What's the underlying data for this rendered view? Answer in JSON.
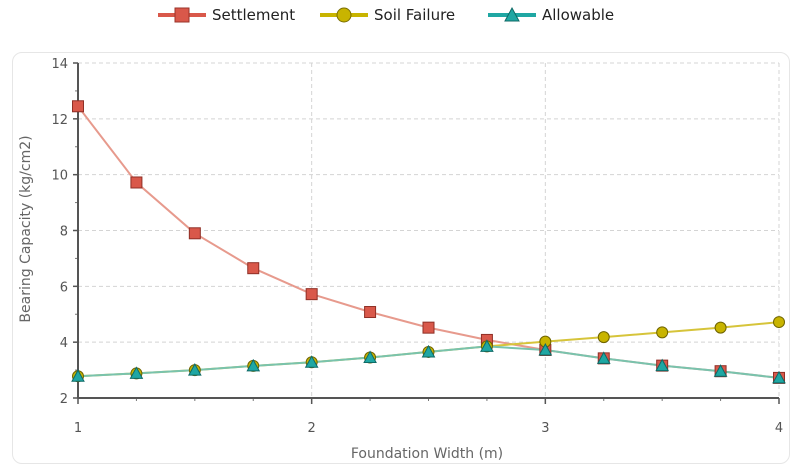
{
  "chart_data": {
    "type": "line",
    "title": "",
    "xlabel": "Foundation Width (m)",
    "ylabel": "Bearing Capacity (kg/cm2)",
    "xlim": [
      1,
      4
    ],
    "ylim": [
      2,
      14
    ],
    "x_ticks": [
      1,
      2,
      3,
      4
    ],
    "y_ticks": [
      2,
      4,
      6,
      8,
      10,
      12,
      14
    ],
    "grid": true,
    "legend_position": "top-center",
    "series": [
      {
        "name": "Settlement",
        "marker": "square",
        "color": "#d9584a",
        "line_color": "#e79a8d",
        "points": [
          [
            1.0,
            12.45
          ],
          [
            1.25,
            9.72
          ],
          [
            1.5,
            7.9
          ],
          [
            1.75,
            6.65
          ],
          [
            2.0,
            5.72
          ],
          [
            2.25,
            5.08
          ],
          [
            2.5,
            4.52
          ],
          [
            2.75,
            4.08
          ],
          [
            3.0,
            3.72
          ],
          [
            3.25,
            3.42
          ],
          [
            3.5,
            3.16
          ],
          [
            3.75,
            2.96
          ],
          [
            4.0,
            2.72
          ]
        ]
      },
      {
        "name": "Soil Failure",
        "marker": "circle",
        "color": "#c8b400",
        "line_color": "#d6c43a",
        "points": [
          [
            1.0,
            2.78
          ],
          [
            1.25,
            2.88
          ],
          [
            1.5,
            3.0
          ],
          [
            1.75,
            3.15
          ],
          [
            2.0,
            3.28
          ],
          [
            2.25,
            3.45
          ],
          [
            2.5,
            3.65
          ],
          [
            2.75,
            3.85
          ],
          [
            3.0,
            4.02
          ],
          [
            3.25,
            4.18
          ],
          [
            3.5,
            4.35
          ],
          [
            3.75,
            4.52
          ],
          [
            4.0,
            4.72
          ]
        ]
      },
      {
        "name": "Allowable",
        "marker": "triangle",
        "color": "#1fa7a3",
        "line_color": "#79c3ad",
        "points": [
          [
            1.0,
            2.78
          ],
          [
            1.25,
            2.88
          ],
          [
            1.5,
            3.0
          ],
          [
            1.75,
            3.15
          ],
          [
            2.0,
            3.28
          ],
          [
            2.25,
            3.45
          ],
          [
            2.5,
            3.65
          ],
          [
            2.75,
            3.85
          ],
          [
            3.0,
            3.72
          ],
          [
            3.25,
            3.42
          ],
          [
            3.5,
            3.16
          ],
          [
            3.75,
            2.96
          ],
          [
            4.0,
            2.72
          ]
        ]
      }
    ]
  }
}
